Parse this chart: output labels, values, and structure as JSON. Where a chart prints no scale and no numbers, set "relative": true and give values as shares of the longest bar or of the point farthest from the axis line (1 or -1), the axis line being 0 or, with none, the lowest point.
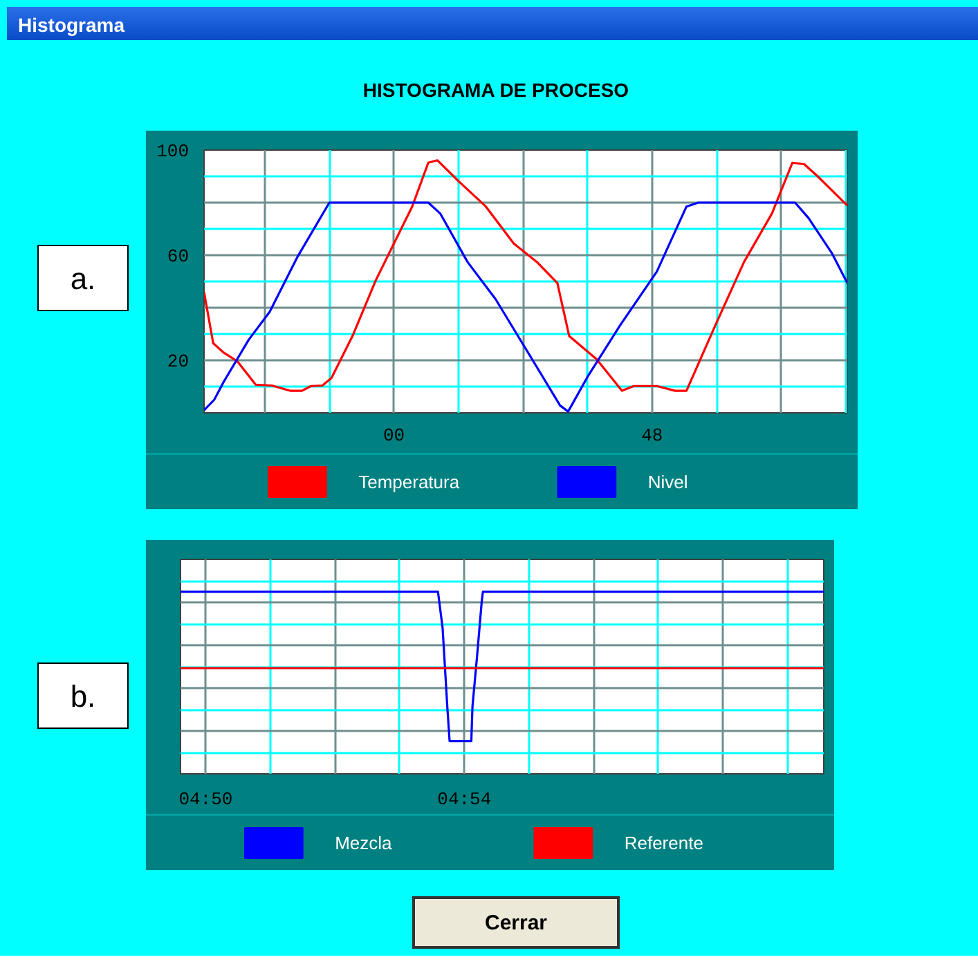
{
  "chart_data": [
    {
      "type": "line",
      "title": "HISTOGRAMA DE PROCESO",
      "annotations": [
        "Histograma",
        "a."
      ],
      "xlim": [
        -35.3,
        84.3
      ],
      "xticks": [
        {
          "value": -24,
          "label": null
        },
        {
          "value": -12,
          "label": null
        },
        {
          "value": 0,
          "label": "00"
        },
        {
          "value": 12,
          "label": null
        },
        {
          "value": 24,
          "label": null
        },
        {
          "value": 36,
          "label": null
        },
        {
          "value": 48,
          "label": "48"
        },
        {
          "value": 60,
          "label": null
        },
        {
          "value": 72,
          "label": null
        },
        {
          "value": 84,
          "label": null
        }
      ],
      "ylim": [
        0,
        100
      ],
      "yticks": [
        {
          "value": 0,
          "label": null
        },
        {
          "value": 10,
          "label": null
        },
        20,
        {
          "value": 30,
          "label": null
        },
        {
          "value": 40,
          "label": null
        },
        {
          "value": 50,
          "label": null
        },
        60,
        {
          "value": 70,
          "label": null
        },
        {
          "value": 80,
          "label": null
        },
        {
          "value": 90,
          "label": null
        },
        100
      ],
      "grid": true,
      "legend": "bottom",
      "series": [
        {
          "name": "Temperatura",
          "color": "#ff0000",
          "x": [
            -35.3,
            -33.6,
            -31.7,
            -29.1,
            -25.7,
            -22.7,
            -19.3,
            -17.1,
            -15.4,
            -13.3,
            -11.6,
            -7.7,
            -3.4,
            0,
            3.4,
            6.4,
            8.1,
            12,
            17.1,
            22.3,
            26.6,
            30.4,
            32.6,
            37.7,
            42.4,
            44.6,
            48.9,
            52.3,
            54.4,
            60,
            65.1,
            70.3,
            74.1,
            76.3,
            78.9,
            84.3
          ],
          "values": [
            46,
            26.5,
            23,
            19.6,
            10.7,
            10.4,
            8.4,
            8.4,
            10.2,
            10.4,
            13.3,
            29.2,
            50.3,
            64.4,
            78.5,
            95.2,
            96.1,
            88.2,
            78.5,
            64.4,
            57.4,
            49.4,
            29.2,
            20.4,
            8.4,
            10.2,
            10.2,
            8.4,
            8.4,
            34.4,
            57.4,
            75.9,
            95.2,
            94.6,
            89.8,
            78.9
          ]
        },
        {
          "name": "Nivel",
          "color": "#0000ff",
          "x": [
            -35.3,
            -33.4,
            -31.7,
            -27,
            -23.1,
            -18,
            -12,
            6.4,
            8.6,
            13.7,
            18.9,
            25.7,
            30.9,
            32.4,
            36,
            42,
            48.9,
            54.4,
            56.6,
            74.6,
            77.1,
            81.4,
            84.3
          ],
          "values": [
            1,
            5,
            11.6,
            27.8,
            38.4,
            59.1,
            80,
            80,
            75.9,
            57.4,
            43.3,
            20.4,
            2.8,
            0.5,
            13.7,
            33.1,
            53.8,
            78.5,
            80,
            80,
            74.1,
            60.9,
            49.4
          ]
        }
      ]
    },
    {
      "type": "line",
      "annotations": [
        "b.",
        "Cerrar"
      ],
      "relative": true,
      "xlim": [
        4.8268,
        4.9927
      ],
      "xticks": [
        {
          "value": 4.8333,
          "label": "04:50"
        },
        {
          "value": 4.85,
          "label": null
        },
        {
          "value": 4.8667,
          "label": null
        },
        {
          "value": 4.8833,
          "label": null
        },
        {
          "value": 4.9,
          "label": "04:54"
        },
        {
          "value": 4.9167,
          "label": null
        },
        {
          "value": 4.9333,
          "label": null
        },
        {
          "value": 4.95,
          "label": null
        },
        {
          "value": 4.9667,
          "label": null
        },
        {
          "value": 4.9833,
          "label": null
        }
      ],
      "grid": true,
      "legend": "bottom",
      "series": [
        {
          "name": "Mezcla",
          "color": "#0000ff",
          "x": [
            4.8268,
            4.8932,
            4.8944,
            4.8956,
            4.8962,
            4.9018,
            4.9021,
            4.9033,
            4.9045,
            4.9048,
            4.9927
          ],
          "values": [
            1,
            1,
            0.8,
            0.37,
            0.18,
            0.18,
            0.37,
            0.65,
            0.95,
            1,
            1
          ]
        },
        {
          "name": "Referente",
          "color": "#ff0000",
          "x": [
            4.8268,
            4.9927
          ],
          "values": [
            0.58,
            0.58
          ]
        }
      ]
    }
  ]
}
